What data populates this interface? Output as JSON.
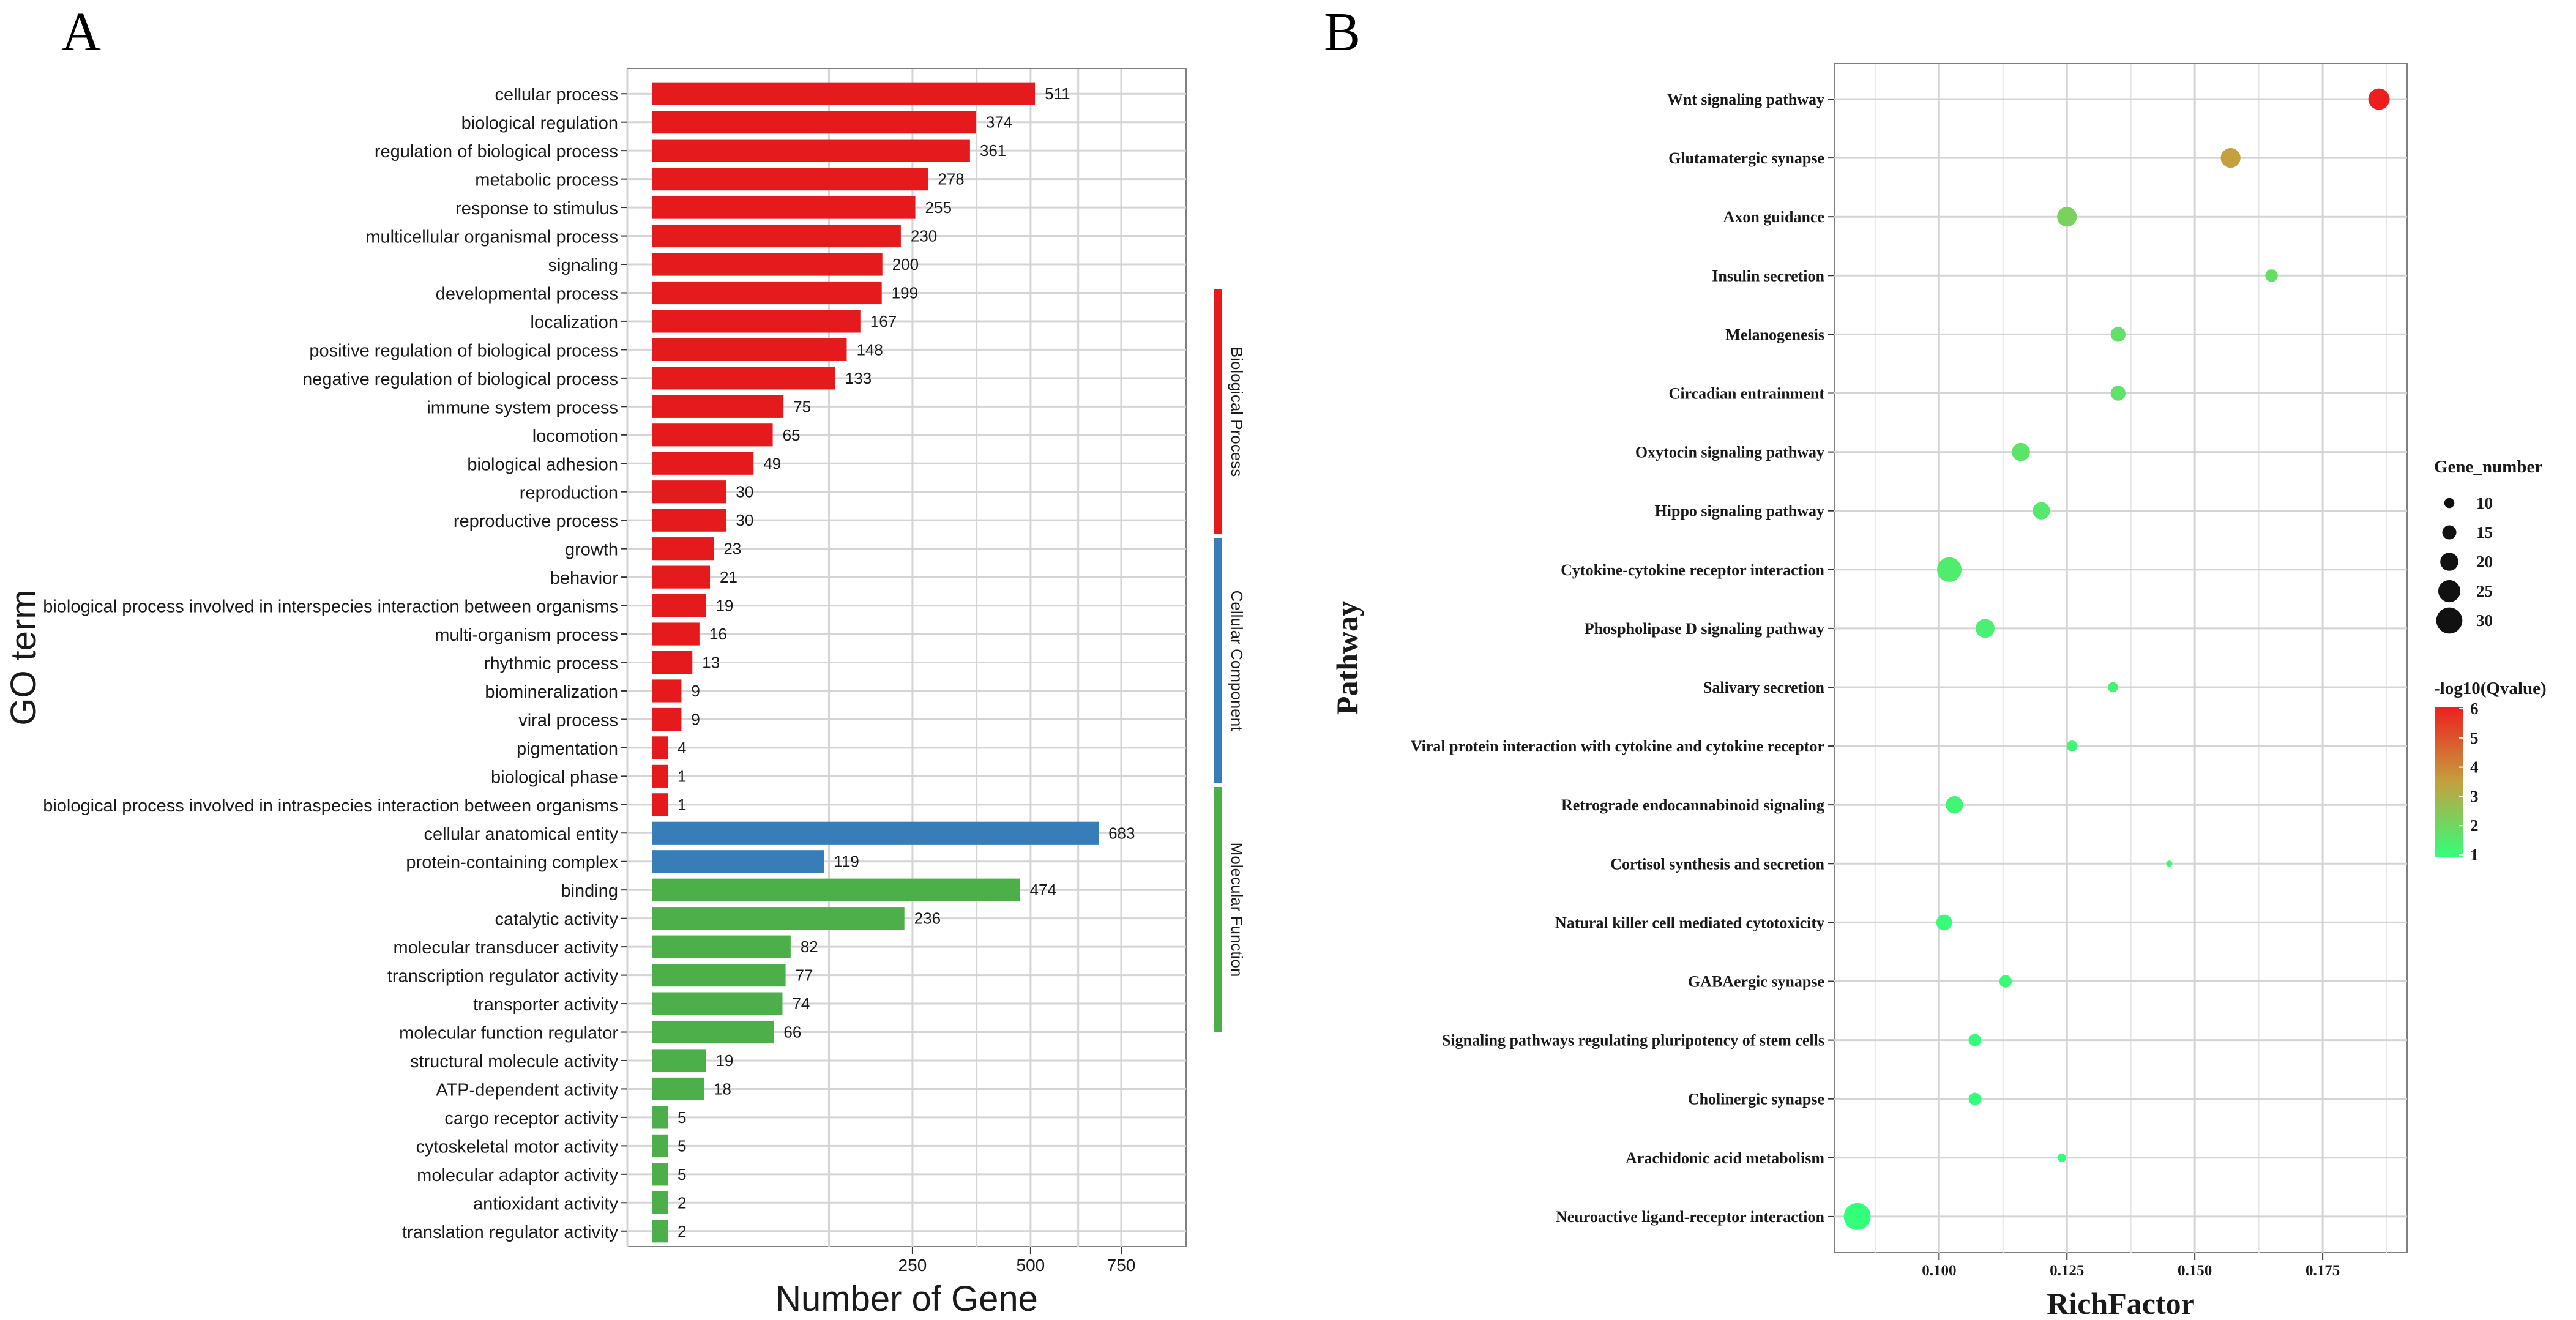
{
  "panel_labels": {
    "a": "A",
    "b": "B"
  },
  "colors": {
    "biological_process": "#e41a1c",
    "cellular_component": "#377eb8",
    "molecular_function": "#4daf4a",
    "grid": "#d4d4d4",
    "frame": "#7f7f7f",
    "gradient_low": "#33ff7a",
    "gradient_mid": "#c4a03f",
    "gradient_high": "#ee1e1e"
  },
  "chart_data": [
    {
      "type": "bar",
      "orientation": "horizontal",
      "xlabel": "Number of Gene",
      "ylabel": "GO term",
      "x_scale": "sqrt",
      "xlim": [
        0,
        960
      ],
      "xticks": [
        250,
        500,
        750
      ],
      "groups": [
        {
          "name": "Biological Process",
          "color_key": "biological_process",
          "categories": [
            "cellular process",
            "biological regulation",
            "regulation of biological process",
            "metabolic process",
            "response to stimulus",
            "multicellular organismal process",
            "signaling",
            "developmental process",
            "localization",
            "positive regulation of biological process",
            "negative regulation of biological process",
            "immune system process",
            "locomotion",
            "biological adhesion",
            "reproduction",
            "reproductive process",
            "growth",
            "behavior",
            "biological process involved in interspecies interaction between organisms",
            "multi-organism process",
            "rhythmic process",
            "biomineralization",
            "viral process",
            "pigmentation",
            "biological phase",
            "biological process involved in intraspecies interaction between organisms"
          ],
          "values": [
            511,
            374,
            361,
            278,
            255,
            230,
            200,
            199,
            167,
            148,
            133,
            75,
            65,
            49,
            30,
            30,
            23,
            21,
            19,
            16,
            13,
            9,
            9,
            4,
            1,
            1
          ]
        },
        {
          "name": "Cellular Component",
          "color_key": "cellular_component",
          "categories": [
            "cellular anatomical entity",
            "protein-containing complex"
          ],
          "values": [
            683,
            119
          ]
        },
        {
          "name": "Molecular Function",
          "color_key": "molecular_function",
          "categories": [
            "binding",
            "catalytic activity",
            "molecular transducer activity",
            "transcription regulator activity",
            "transporter activity",
            "molecular function regulator",
            "structural molecule activity",
            "ATP-dependent activity",
            "cargo receptor activity",
            "cytoskeletal motor activity",
            "molecular adaptor activity",
            "antioxidant activity",
            "translation regulator activity"
          ],
          "values": [
            474,
            236,
            82,
            77,
            74,
            66,
            19,
            18,
            5,
            5,
            5,
            2,
            2
          ]
        }
      ]
    },
    {
      "type": "scatter",
      "xlabel": "RichFactor",
      "ylabel": "Pathway",
      "xlim": [
        0.0795,
        0.1915
      ],
      "xticks": [
        "0.100",
        "0.125",
        "0.150",
        "0.175"
      ],
      "pathways": [
        "Wnt signaling pathway",
        "Glutamatergic synapse",
        "Axon guidance",
        "Insulin secretion",
        "Melanogenesis",
        "Circadian entrainment",
        "Oxytocin signaling pathway",
        "Hippo signaling pathway",
        "Cytokine-cytokine receptor interaction",
        "Phospholipase D signaling pathway",
        "Salivary secretion",
        "Viral protein interaction with cytokine and cytokine receptor",
        "Retrograde endocannabinoid signaling",
        "Cortisol synthesis and secretion",
        "Natural killer cell mediated cytotoxicity",
        "GABAergic synapse",
        "Signaling pathways regulating pluripotency of stem cells",
        "Cholinergic synapse",
        "Arachidonic acid metabolism",
        "Neuroactive ligand-receptor interaction"
      ],
      "rich_factor": [
        0.186,
        0.157,
        0.125,
        0.165,
        0.135,
        0.135,
        0.116,
        0.12,
        0.102,
        0.109,
        0.134,
        0.126,
        0.103,
        0.145,
        0.101,
        0.113,
        0.107,
        0.107,
        0.124,
        0.084
      ],
      "gene_number": [
        24,
        22,
        22,
        13,
        16,
        16,
        20,
        19,
        28,
        21,
        10,
        11,
        19,
        5,
        17,
        13,
        13,
        13,
        8,
        31
      ],
      "neg_log10_q": [
        6.0,
        3.5,
        2.2,
        1.9,
        1.8,
        1.8,
        1.7,
        1.6,
        1.5,
        1.4,
        1.3,
        1.2,
        1.2,
        1.2,
        1.1,
        1.1,
        1.0,
        1.0,
        1.0,
        1.0
      ],
      "size_legend": {
        "title": "Gene_number",
        "values": [
          10,
          15,
          20,
          25,
          30
        ]
      },
      "color_legend": {
        "title": "-log10(Qvalue)",
        "ticks": [
          6,
          5,
          4,
          3,
          2,
          1
        ],
        "range": [
          1,
          6
        ]
      }
    }
  ]
}
